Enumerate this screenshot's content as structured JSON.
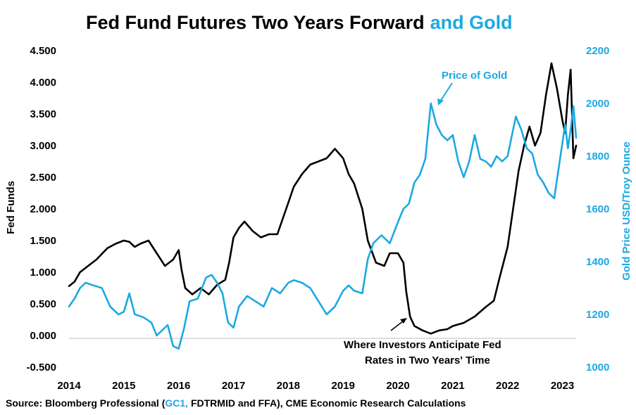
{
  "chart_data": {
    "type": "line",
    "title": "Fed Fund Futures Two Years Forward",
    "title_highlight": "and Gold",
    "ylabel": "Fed Funds",
    "y2label": "Gold Price USD/Troy Ounce",
    "ylim": [
      -0.5,
      4.5
    ],
    "y2lim": [
      1000,
      2200
    ],
    "xlim": [
      2014.0,
      2023.25
    ],
    "y_ticks": [
      "-0.500",
      "0.000",
      "0.500",
      "1.000",
      "1.500",
      "2.000",
      "2.500",
      "3.000",
      "3.500",
      "4.000",
      "4.500"
    ],
    "y2_ticks": [
      "1000",
      "1200",
      "1400",
      "1600",
      "1800",
      "2000",
      "2200"
    ],
    "x_ticks": [
      "2014",
      "2015",
      "2016",
      "2017",
      "2018",
      "2019",
      "2020",
      "2021",
      "2022",
      "2023"
    ],
    "grid": false,
    "colors": {
      "fed": "#000000",
      "gold": "#1ca9e1"
    },
    "annotations": {
      "gold": "Price of Gold",
      "fed_line1": "Where Investors Anticipate Fed",
      "fed_line2": "Rates in Two Years' Time"
    },
    "source": {
      "prefix": "Source: Bloomberg Professional  (",
      "highlight": "GC1,",
      "suffix": " FDTRMID and FFA), CME Economic Research Calculations"
    },
    "series": [
      {
        "axis": "left",
        "points": [
          [
            2014.0,
            0.78
          ],
          [
            2014.1,
            0.85
          ],
          [
            2014.2,
            1.0
          ],
          [
            2014.35,
            1.1
          ],
          [
            2014.5,
            1.2
          ],
          [
            2014.7,
            1.38
          ],
          [
            2014.85,
            1.45
          ],
          [
            2015.0,
            1.5
          ],
          [
            2015.1,
            1.48
          ],
          [
            2015.2,
            1.4
          ],
          [
            2015.3,
            1.45
          ],
          [
            2015.45,
            1.5
          ],
          [
            2015.6,
            1.3
          ],
          [
            2015.75,
            1.1
          ],
          [
            2015.9,
            1.2
          ],
          [
            2016.0,
            1.35
          ],
          [
            2016.05,
            1.05
          ],
          [
            2016.12,
            0.75
          ],
          [
            2016.25,
            0.65
          ],
          [
            2016.4,
            0.75
          ],
          [
            2016.55,
            0.65
          ],
          [
            2016.7,
            0.8
          ],
          [
            2016.85,
            0.88
          ],
          [
            2016.92,
            1.15
          ],
          [
            2017.0,
            1.55
          ],
          [
            2017.1,
            1.7
          ],
          [
            2017.2,
            1.8
          ],
          [
            2017.35,
            1.65
          ],
          [
            2017.5,
            1.55
          ],
          [
            2017.65,
            1.6
          ],
          [
            2017.8,
            1.6
          ],
          [
            2017.9,
            1.85
          ],
          [
            2018.0,
            2.1
          ],
          [
            2018.1,
            2.35
          ],
          [
            2018.25,
            2.55
          ],
          [
            2018.4,
            2.7
          ],
          [
            2018.55,
            2.75
          ],
          [
            2018.7,
            2.8
          ],
          [
            2018.85,
            2.95
          ],
          [
            2019.0,
            2.8
          ],
          [
            2019.1,
            2.55
          ],
          [
            2019.2,
            2.4
          ],
          [
            2019.35,
            2.0
          ],
          [
            2019.45,
            1.5
          ],
          [
            2019.6,
            1.15
          ],
          [
            2019.75,
            1.1
          ],
          [
            2019.85,
            1.3
          ],
          [
            2020.0,
            1.3
          ],
          [
            2020.1,
            1.15
          ],
          [
            2020.15,
            0.7
          ],
          [
            2020.22,
            0.3
          ],
          [
            2020.3,
            0.15
          ],
          [
            2020.45,
            0.08
          ],
          [
            2020.6,
            0.03
          ],
          [
            2020.75,
            0.08
          ],
          [
            2020.9,
            0.1
          ],
          [
            2021.0,
            0.15
          ],
          [
            2021.2,
            0.2
          ],
          [
            2021.4,
            0.3
          ],
          [
            2021.6,
            0.45
          ],
          [
            2021.75,
            0.55
          ],
          [
            2021.85,
            0.9
          ],
          [
            2022.0,
            1.4
          ],
          [
            2022.1,
            2.0
          ],
          [
            2022.2,
            2.6
          ],
          [
            2022.3,
            3.0
          ],
          [
            2022.4,
            3.3
          ],
          [
            2022.5,
            3.0
          ],
          [
            2022.6,
            3.2
          ],
          [
            2022.7,
            3.8
          ],
          [
            2022.8,
            4.3
          ],
          [
            2022.9,
            3.9
          ],
          [
            2023.0,
            3.4
          ],
          [
            2023.05,
            3.2
          ],
          [
            2023.1,
            3.8
          ],
          [
            2023.15,
            4.2
          ],
          [
            2023.2,
            2.8
          ],
          [
            2023.25,
            3.0
          ]
        ]
      },
      {
        "axis": "right",
        "points": [
          [
            2014.0,
            1230
          ],
          [
            2014.1,
            1260
          ],
          [
            2014.2,
            1300
          ],
          [
            2014.3,
            1320
          ],
          [
            2014.45,
            1310
          ],
          [
            2014.6,
            1300
          ],
          [
            2014.75,
            1230
          ],
          [
            2014.9,
            1200
          ],
          [
            2015.0,
            1210
          ],
          [
            2015.1,
            1280
          ],
          [
            2015.2,
            1200
          ],
          [
            2015.35,
            1190
          ],
          [
            2015.5,
            1170
          ],
          [
            2015.6,
            1120
          ],
          [
            2015.7,
            1140
          ],
          [
            2015.8,
            1160
          ],
          [
            2015.9,
            1080
          ],
          [
            2016.0,
            1070
          ],
          [
            2016.1,
            1150
          ],
          [
            2016.2,
            1250
          ],
          [
            2016.35,
            1260
          ],
          [
            2016.5,
            1340
          ],
          [
            2016.6,
            1350
          ],
          [
            2016.7,
            1320
          ],
          [
            2016.8,
            1280
          ],
          [
            2016.9,
            1170
          ],
          [
            2017.0,
            1150
          ],
          [
            2017.1,
            1230
          ],
          [
            2017.25,
            1270
          ],
          [
            2017.4,
            1250
          ],
          [
            2017.55,
            1230
          ],
          [
            2017.7,
            1300
          ],
          [
            2017.85,
            1280
          ],
          [
            2018.0,
            1320
          ],
          [
            2018.1,
            1330
          ],
          [
            2018.25,
            1320
          ],
          [
            2018.4,
            1300
          ],
          [
            2018.55,
            1250
          ],
          [
            2018.7,
            1200
          ],
          [
            2018.85,
            1230
          ],
          [
            2019.0,
            1290
          ],
          [
            2019.1,
            1310
          ],
          [
            2019.2,
            1290
          ],
          [
            2019.35,
            1280
          ],
          [
            2019.45,
            1410
          ],
          [
            2019.55,
            1470
          ],
          [
            2019.7,
            1500
          ],
          [
            2019.85,
            1470
          ],
          [
            2020.0,
            1550
          ],
          [
            2020.1,
            1600
          ],
          [
            2020.2,
            1620
          ],
          [
            2020.3,
            1700
          ],
          [
            2020.4,
            1730
          ],
          [
            2020.5,
            1790
          ],
          [
            2020.6,
            2000
          ],
          [
            2020.7,
            1920
          ],
          [
            2020.8,
            1880
          ],
          [
            2020.9,
            1860
          ],
          [
            2021.0,
            1880
          ],
          [
            2021.1,
            1780
          ],
          [
            2021.2,
            1720
          ],
          [
            2021.3,
            1780
          ],
          [
            2021.4,
            1880
          ],
          [
            2021.5,
            1790
          ],
          [
            2021.6,
            1780
          ],
          [
            2021.7,
            1760
          ],
          [
            2021.8,
            1800
          ],
          [
            2021.9,
            1780
          ],
          [
            2022.0,
            1800
          ],
          [
            2022.1,
            1900
          ],
          [
            2022.15,
            1950
          ],
          [
            2022.25,
            1900
          ],
          [
            2022.35,
            1830
          ],
          [
            2022.45,
            1810
          ],
          [
            2022.55,
            1730
          ],
          [
            2022.65,
            1700
          ],
          [
            2022.75,
            1660
          ],
          [
            2022.85,
            1640
          ],
          [
            2022.95,
            1780
          ],
          [
            2023.0,
            1850
          ],
          [
            2023.05,
            1920
          ],
          [
            2023.1,
            1830
          ],
          [
            2023.15,
            1900
          ],
          [
            2023.2,
            1990
          ],
          [
            2023.25,
            1870
          ]
        ]
      }
    ]
  }
}
